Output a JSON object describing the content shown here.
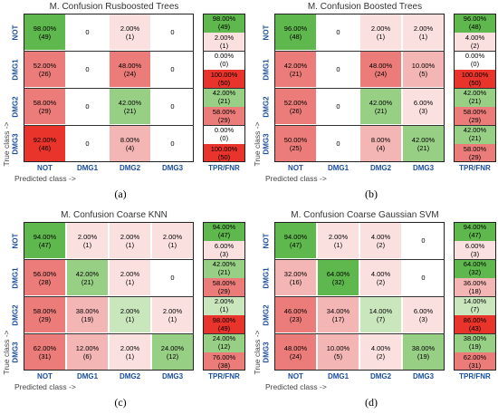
{
  "axis_labels": {
    "x": "Predicted class ->",
    "y": "True class ->"
  },
  "classes": [
    "NOT",
    "DMG1",
    "DMG2",
    "DMG3"
  ],
  "side_header": "TPR/FNR",
  "colors": {
    "green_strong": "#5fb84d",
    "green_mid": "#97cf85",
    "green_light": "#c9e6bd",
    "red_strong": "#e8342b",
    "red_mid": "#ec7c79",
    "red_light": "#f3b6b4",
    "pink": "#fae0df",
    "white": "#ffffff",
    "label_blue": "#1a4fa0"
  },
  "chart_data": [
    {
      "type": "table",
      "caption": "(a)",
      "title": "M. Confusion Rusboosted Trees",
      "matrix": [
        [
          {
            "pct": "98.00%",
            "count": "(49)"
          },
          {
            "pct": "0"
          },
          {
            "pct": "2.00%",
            "count": "(1)"
          },
          {
            "pct": "0"
          }
        ],
        [
          {
            "pct": "52.00%",
            "count": "(26)"
          },
          {
            "pct": "0"
          },
          {
            "pct": "48.00%",
            "count": "(24)"
          },
          {
            "pct": "0"
          }
        ],
        [
          {
            "pct": "58.00%",
            "count": "(29)"
          },
          {
            "pct": "0"
          },
          {
            "pct": "42.00%",
            "count": "(21)"
          },
          {
            "pct": "0"
          }
        ],
        [
          {
            "pct": "92.00%",
            "count": "(46)"
          },
          {
            "pct": "0"
          },
          {
            "pct": "8.00%",
            "count": "(4)"
          },
          {
            "pct": "0"
          }
        ]
      ],
      "tpr_fnr": [
        {
          "tpr": {
            "pct": "98.00%",
            "count": "(49)"
          },
          "fnr": {
            "pct": "2.00%",
            "count": "(1)"
          }
        },
        {
          "tpr": {
            "pct": "0.00%",
            "count": "(0)"
          },
          "fnr": {
            "pct": "100.00%",
            "count": "(50)"
          }
        },
        {
          "tpr": {
            "pct": "42.00%",
            "count": "(21)"
          },
          "fnr": {
            "pct": "58.00%",
            "count": "(29)"
          }
        },
        {
          "tpr": {
            "pct": "0.00%",
            "count": "(0)"
          },
          "fnr": {
            "pct": "100.00%",
            "count": "(50)"
          }
        }
      ]
    },
    {
      "type": "table",
      "caption": "(b)",
      "title": "M. Confusion Boosted Trees",
      "matrix": [
        [
          {
            "pct": "96.00%",
            "count": "(48)"
          },
          {
            "pct": "0"
          },
          {
            "pct": "2.00%",
            "count": "(1)"
          },
          {
            "pct": "2.00%",
            "count": "(1)"
          }
        ],
        [
          {
            "pct": "42.00%",
            "count": "(21)"
          },
          {
            "pct": "0"
          },
          {
            "pct": "48.00%",
            "count": "(24)"
          },
          {
            "pct": "10.00%",
            "count": "(5)"
          }
        ],
        [
          {
            "pct": "52.00%",
            "count": "(26)"
          },
          {
            "pct": "0"
          },
          {
            "pct": "42.00%",
            "count": "(21)"
          },
          {
            "pct": "6.00%",
            "count": "(3)"
          }
        ],
        [
          {
            "pct": "50.00%",
            "count": "(25)"
          },
          {
            "pct": "0"
          },
          {
            "pct": "8.00%",
            "count": "(4)"
          },
          {
            "pct": "42.00%",
            "count": "(21)"
          }
        ]
      ],
      "tpr_fnr": [
        {
          "tpr": {
            "pct": "96.00%",
            "count": "(48)"
          },
          "fnr": {
            "pct": "4.00%",
            "count": "(2)"
          }
        },
        {
          "tpr": {
            "pct": "0.00%",
            "count": "(0)"
          },
          "fnr": {
            "pct": "100.00%",
            "count": "(50)"
          }
        },
        {
          "tpr": {
            "pct": "42.00%",
            "count": "(21)"
          },
          "fnr": {
            "pct": "58.00%",
            "count": "(29)"
          }
        },
        {
          "tpr": {
            "pct": "42.00%",
            "count": "(21)"
          },
          "fnr": {
            "pct": "58.00%",
            "count": "(29)"
          }
        }
      ]
    },
    {
      "type": "table",
      "caption": "(c)",
      "title": "M. Confusion Coarse KNN",
      "matrix": [
        [
          {
            "pct": "94.00%",
            "count": "(47)"
          },
          {
            "pct": "2.00%",
            "count": "(1)"
          },
          {
            "pct": "2.00%",
            "count": "(1)"
          },
          {
            "pct": "2.00%",
            "count": "(1)"
          }
        ],
        [
          {
            "pct": "56.00%",
            "count": "(28)"
          },
          {
            "pct": "42.00%",
            "count": "(21)"
          },
          {
            "pct": "2.00%",
            "count": "(1)"
          },
          {
            "pct": "0"
          }
        ],
        [
          {
            "pct": "58.00%",
            "count": "(29)"
          },
          {
            "pct": "38.00%",
            "count": "(19)"
          },
          {
            "pct": "2.00%",
            "count": "(1)"
          },
          {
            "pct": "2.00%",
            "count": "(1)"
          }
        ],
        [
          {
            "pct": "62.00%",
            "count": "(31)"
          },
          {
            "pct": "12.00%",
            "count": "(6)"
          },
          {
            "pct": "2.00%",
            "count": "(1)"
          },
          {
            "pct": "24.00%",
            "count": "(12)"
          }
        ]
      ],
      "tpr_fnr": [
        {
          "tpr": {
            "pct": "94.00%",
            "count": "(47)"
          },
          "fnr": {
            "pct": "6.00%",
            "count": "(3)"
          }
        },
        {
          "tpr": {
            "pct": "42.00%",
            "count": "(21)"
          },
          "fnr": {
            "pct": "58.00%",
            "count": "(29)"
          }
        },
        {
          "tpr": {
            "pct": "2.00%",
            "count": "(1)"
          },
          "fnr": {
            "pct": "98.00%",
            "count": "(49)"
          }
        },
        {
          "tpr": {
            "pct": "24.00%",
            "count": "(12)"
          },
          "fnr": {
            "pct": "76.00%",
            "count": "(38)"
          }
        }
      ]
    },
    {
      "type": "table",
      "caption": "(d)",
      "title": "M. Confusion Coarse Gaussian SVM",
      "matrix": [
        [
          {
            "pct": "94.00%",
            "count": "(47)"
          },
          {
            "pct": "2.00%",
            "count": "(1)"
          },
          {
            "pct": "4.00%",
            "count": "(2)"
          },
          {
            "pct": "0"
          }
        ],
        [
          {
            "pct": "32.00%",
            "count": "(16)"
          },
          {
            "pct": "64.00%",
            "count": "(32)"
          },
          {
            "pct": "4.00%",
            "count": "(2)"
          },
          {
            "pct": "0"
          }
        ],
        [
          {
            "pct": "46.00%",
            "count": "(23)"
          },
          {
            "pct": "34.00%",
            "count": "(17)"
          },
          {
            "pct": "14.00%",
            "count": "(7)"
          },
          {
            "pct": "6.00%",
            "count": "(3)"
          }
        ],
        [
          {
            "pct": "48.00%",
            "count": "(24)"
          },
          {
            "pct": "10.00%",
            "count": "(5)"
          },
          {
            "pct": "4.00%",
            "count": "(2)"
          },
          {
            "pct": "38.00%",
            "count": "(19)"
          }
        ]
      ],
      "tpr_fnr": [
        {
          "tpr": {
            "pct": "94.00%",
            "count": "(47)"
          },
          "fnr": {
            "pct": "6.00%",
            "count": "(3)"
          }
        },
        {
          "tpr": {
            "pct": "64.00%",
            "count": "(32)"
          },
          "fnr": {
            "pct": "36.00%",
            "count": "(18)"
          }
        },
        {
          "tpr": {
            "pct": "14.00%",
            "count": "(7)"
          },
          "fnr": {
            "pct": "86.00%",
            "count": "(43)"
          }
        },
        {
          "tpr": {
            "pct": "38.00%",
            "count": "(19)"
          },
          "fnr": {
            "pct": "62.00%",
            "count": "(31)"
          }
        }
      ]
    }
  ]
}
